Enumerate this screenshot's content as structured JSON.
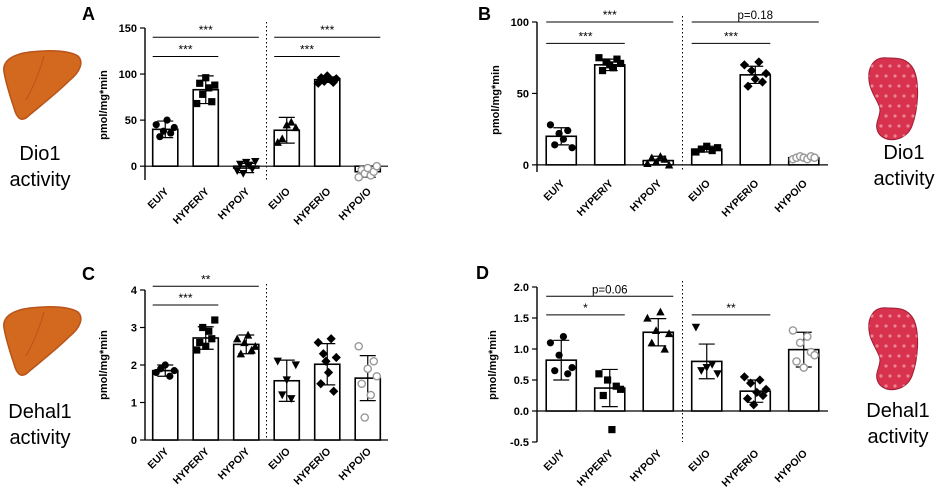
{
  "figure": {
    "sidebars": {
      "top_left": {
        "line1": "Dio1",
        "line2": "activity",
        "organ": "liver"
      },
      "top_right": {
        "line1": "Dio1",
        "line2": "activity",
        "organ": "kidney"
      },
      "bottom_left": {
        "line1": "Dehal1",
        "line2": "activity",
        "organ": "liver"
      },
      "bottom_right": {
        "line1": "Dehal1",
        "line2": "activity",
        "organ": "kidney"
      }
    },
    "colors": {
      "liver": "#d2691e",
      "liver_dark": "#b8541a",
      "kidney": "#d8324e",
      "kidney_spot": "#f2a0ae",
      "bar_fill": "#ffffff",
      "axis": "#000000",
      "point": "#000000",
      "point_hollow": "#999999"
    }
  },
  "chart_data": [
    {
      "panel": "A",
      "type": "bar",
      "title": "",
      "xlabel": "",
      "ylabel": "pmol/mg*min",
      "ylim": [
        -15,
        150
      ],
      "yticks": [
        0,
        50,
        100,
        150
      ],
      "categories": [
        "EU/Y",
        "HYPER/Y",
        "HYPO/Y",
        "EU/O",
        "HYPER/O",
        "HYPO/O"
      ],
      "values": [
        40,
        83,
        -2,
        39,
        94,
        -6
      ],
      "errors": [
        9,
        15,
        5,
        14,
        3,
        6
      ],
      "markers": [
        "circle",
        "square",
        "triangle-down",
        "triangle-up",
        "diamond",
        "circle-open"
      ],
      "points": [
        [
          45,
          32,
          38,
          50,
          36,
          42
        ],
        [
          68,
          90,
          78,
          96,
          85,
          70,
          88
        ],
        [
          -5,
          2,
          -8,
          4,
          1,
          -3,
          5
        ],
        [
          26,
          30,
          45,
          48,
          42
        ],
        [
          90,
          96,
          92,
          98,
          94,
          91,
          95
        ],
        [
          -12,
          -4,
          -8,
          -2,
          -10,
          -6,
          0
        ]
      ],
      "divider_after": 2,
      "annotations": [
        {
          "from": 0,
          "to": 1,
          "label": "***",
          "value": 119
        },
        {
          "from": 0,
          "to": 2,
          "label": "***",
          "value": 140
        },
        {
          "from": 3,
          "to": 4,
          "label": "***",
          "value": 119
        },
        {
          "from": 3,
          "to": 5,
          "label": "***",
          "value": 140
        }
      ]
    },
    {
      "panel": "B",
      "type": "bar",
      "title": "",
      "xlabel": "",
      "ylabel": "pmol/mg*min",
      "ylim": [
        -5,
        100
      ],
      "yticks": [
        0,
        50,
        100
      ],
      "categories": [
        "EU/Y",
        "HYPER/Y",
        "HYPO/Y",
        "EU/O",
        "HYPER/O",
        "HYPO/O"
      ],
      "values": [
        20,
        70,
        3,
        11,
        63,
        5
      ],
      "errors": [
        6,
        4,
        3,
        2,
        6,
        1
      ],
      "markers": [
        "circle",
        "square",
        "triangle-up",
        "square",
        "diamond",
        "circle-open"
      ],
      "points": [
        [
          28,
          14,
          22,
          18,
          24,
          12
        ],
        [
          75,
          66,
          72,
          70,
          68,
          74,
          71
        ],
        [
          1,
          5,
          2,
          6,
          4,
          0
        ],
        [
          9,
          11,
          13,
          10,
          12
        ],
        [
          70,
          55,
          66,
          60,
          72,
          58,
          64
        ],
        [
          4,
          5,
          6,
          5,
          4,
          6,
          5
        ]
      ],
      "divider_after": 2,
      "annotations": [
        {
          "from": 0,
          "to": 1,
          "label": "***",
          "value": 85
        },
        {
          "from": 0,
          "to": 2,
          "label": "***",
          "value": 100
        },
        {
          "from": 3,
          "to": 4,
          "label": "***",
          "value": 85
        },
        {
          "from": 3,
          "to": 5,
          "label": "p=0.18",
          "value": 100
        }
      ]
    },
    {
      "panel": "C",
      "type": "bar",
      "title": "",
      "xlabel": "",
      "ylabel": "pmol/mg*min",
      "ylim": [
        0,
        4
      ],
      "yticks": [
        0,
        1,
        2,
        3,
        4
      ],
      "categories": [
        "EU/Y",
        "HYPER/Y",
        "HYPO/Y",
        "EU/O",
        "HYPER/O",
        "HYPO/O"
      ],
      "values": [
        1.85,
        2.72,
        2.55,
        1.58,
        2.02,
        1.65
      ],
      "errors": [
        0.15,
        0.3,
        0.25,
        0.55,
        0.55,
        0.6
      ],
      "markers": [
        "circle",
        "square",
        "triangle-up",
        "triangle-down",
        "diamond",
        "circle-open"
      ],
      "points": [
        [
          1.8,
          1.9,
          2.0,
          1.7,
          1.85
        ],
        [
          2.4,
          2.6,
          3.0,
          2.5,
          2.9,
          2.7,
          3.2
        ],
        [
          2.7,
          2.3,
          2.6,
          2.8,
          2.4,
          2.5
        ],
        [
          2.1,
          1.2,
          1.6,
          1.1,
          2.0
        ],
        [
          2.6,
          1.5,
          2.3,
          2.1,
          1.8,
          2.7,
          1.3,
          2.2
        ],
        [
          2.5,
          1.5,
          0.6,
          1.9,
          1.2,
          2.1,
          1.7
        ]
      ],
      "divider_after": 2,
      "annotations": [
        {
          "from": 0,
          "to": 1,
          "label": "***",
          "value": 3.6
        },
        {
          "from": 0,
          "to": 2,
          "label": "**",
          "value": 4.1
        }
      ]
    },
    {
      "panel": "D",
      "type": "bar",
      "title": "",
      "xlabel": "",
      "ylabel": "pmol/mg*min",
      "ylim": [
        -0.5,
        2.0
      ],
      "yticks": [
        -0.5,
        0.0,
        0.5,
        1.0,
        1.5,
        2.0
      ],
      "categories": [
        "EU/Y",
        "HYPER/Y",
        "HYPO/Y",
        "EU/O",
        "HYPER/O",
        "HYPO/O"
      ],
      "values": [
        0.82,
        0.37,
        1.27,
        0.8,
        0.32,
        0.99
      ],
      "errors": [
        0.32,
        0.3,
        0.22,
        0.28,
        0.18,
        0.28
      ],
      "markers": [
        "circle",
        "square",
        "triangle-up",
        "triangle-down",
        "diamond",
        "circle-open"
      ],
      "points": [
        [
          1.1,
          0.65,
          0.9,
          1.2,
          0.6,
          0.7
        ],
        [
          0.6,
          0.25,
          0.5,
          -0.3,
          0.4,
          0.35
        ],
        [
          1.5,
          1.1,
          1.3,
          1.6,
          1.0,
          1.25
        ],
        [
          1.35,
          0.65,
          0.7,
          0.75,
          0.6
        ],
        [
          0.55,
          0.2,
          0.45,
          0.1,
          0.3,
          0.5,
          0.25,
          0.35
        ],
        [
          1.3,
          0.8,
          1.1,
          0.7,
          1.2,
          0.95,
          0.9
        ]
      ],
      "divider_after": 2,
      "annotations": [
        {
          "from": 0,
          "to": 1,
          "label": "*",
          "value": 1.55
        },
        {
          "from": 0,
          "to": 2,
          "label": "p=0.06",
          "value": 1.85
        },
        {
          "from": 3,
          "to": 4,
          "label": "**",
          "value": 1.55
        }
      ]
    }
  ]
}
